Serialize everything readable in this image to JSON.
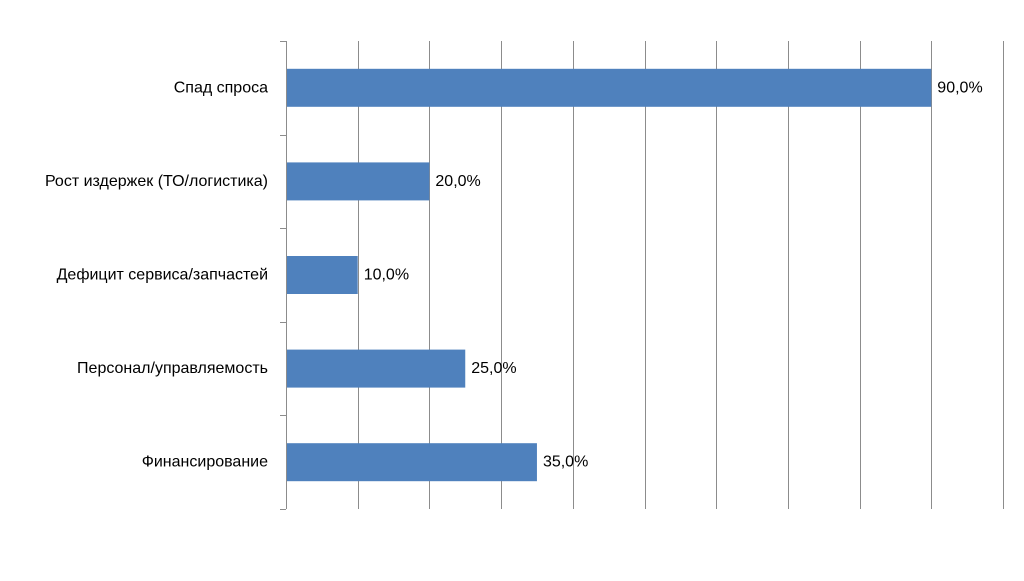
{
  "chart_data": {
    "type": "bar",
    "orientation": "horizontal",
    "categories": [
      "Спад спроса",
      "Рост издержек (ТО/логистика)",
      "Дефицит сервиса/запчастей",
      "Персонал/управляемость",
      "Финансирование"
    ],
    "values": [
      90.0,
      20.0,
      10.0,
      25.0,
      35.0
    ],
    "data_labels": [
      "90,0%",
      "20,0%",
      "10,0%",
      "25,0%",
      "35,0%"
    ],
    "value_unit": "%",
    "xlim": [
      0,
      100
    ],
    "x_gridline_step": 10,
    "grid": true,
    "legend": "none",
    "title": "",
    "xlabel": "",
    "ylabel": "",
    "colors": {
      "bar": "#4F81BD",
      "grid": "#8C8C8C",
      "axis": "#8C8C8C",
      "text": "#000000"
    }
  }
}
